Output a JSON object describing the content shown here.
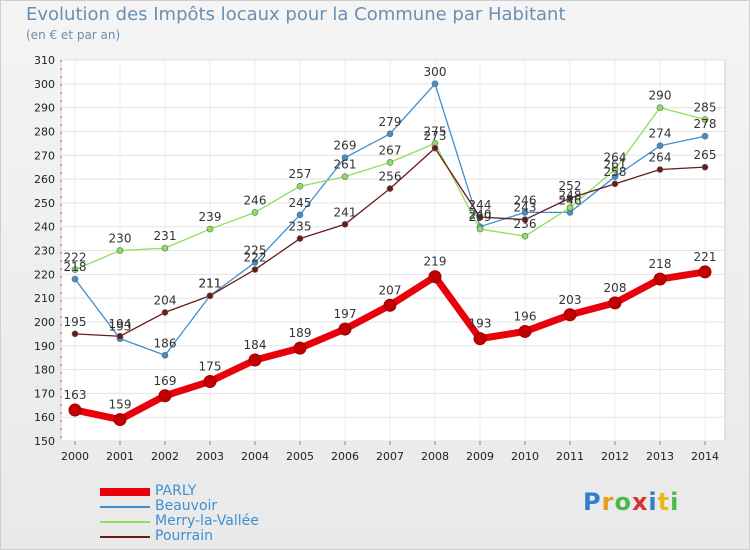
{
  "title": "Evolution des Impôts locaux pour la Commune par Habitant",
  "subtitle": "(en € et par an)",
  "logo_text": "Proxiti",
  "chart_data": {
    "type": "line",
    "title": "Evolution des Impôts locaux pour la Commune par Habitant",
    "subtitle": "(en € et par an)",
    "x": [
      "2000",
      "2001",
      "2002",
      "2003",
      "2004",
      "2005",
      "2006",
      "2007",
      "2008",
      "2009",
      "2010",
      "2011",
      "2012",
      "2013",
      "2014"
    ],
    "ylim": [
      150,
      310
    ],
    "yticks": [
      150,
      160,
      170,
      180,
      190,
      200,
      210,
      220,
      230,
      240,
      250,
      260,
      270,
      280,
      290,
      300,
      310
    ],
    "grid": true,
    "legend_position": "bottom-left",
    "series": [
      {
        "name": "PARLY",
        "color": "#e8000b",
        "values": [
          163,
          159,
          169,
          175,
          184,
          189,
          197,
          207,
          219,
          193,
          196,
          203,
          208,
          218,
          221
        ]
      },
      {
        "name": "Beauvoir",
        "color": "#3f8fcf",
        "values": [
          218,
          193,
          186,
          211,
          225,
          245,
          269,
          279,
          300,
          240,
          246,
          246,
          261,
          274,
          278
        ]
      },
      {
        "name": "Merry-la-Vallée",
        "color": "#8fdf5a",
        "values": [
          222,
          230,
          231,
          239,
          246,
          257,
          261,
          267,
          275,
          239,
          236,
          248,
          264,
          290,
          285
        ]
      },
      {
        "name": "Pourrain",
        "color": "#6b1a1a",
        "values": [
          195,
          194,
          204,
          211,
          222,
          235,
          241,
          256,
          273,
          244,
          243,
          252,
          258,
          264,
          265
        ]
      }
    ]
  }
}
